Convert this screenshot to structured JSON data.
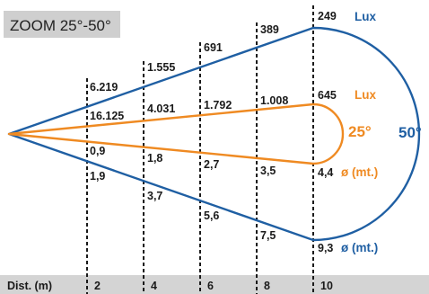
{
  "title": "ZOOM 25°-50°",
  "labels": {
    "lux_wide": "Lux",
    "lux_narrow": "Lux",
    "angle_narrow": "25°",
    "angle_wide": "50°",
    "diam_narrow": "ø (mt.)",
    "diam_wide": "ø (mt.)",
    "dist_label": "Dist. (m)"
  },
  "distances": [
    "2",
    "4",
    "6",
    "8",
    "10"
  ],
  "lux_50": [
    "6.219",
    "1.555",
    "691",
    "389",
    "249"
  ],
  "lux_25": [
    "16.125",
    "4.031",
    "1.792",
    "1.008",
    "645"
  ],
  "diam_25": [
    "0,9",
    "1,8",
    "2,7",
    "3,5",
    "4,4"
  ],
  "diam_50": [
    "1,9",
    "3,7",
    "5,6",
    "7,5",
    "9,3"
  ],
  "colors": {
    "wide": "#1f5fa3",
    "narrow": "#ef8a22",
    "axis_bar": "#d4d4d4",
    "title_box": "#cfcfcf"
  }
}
